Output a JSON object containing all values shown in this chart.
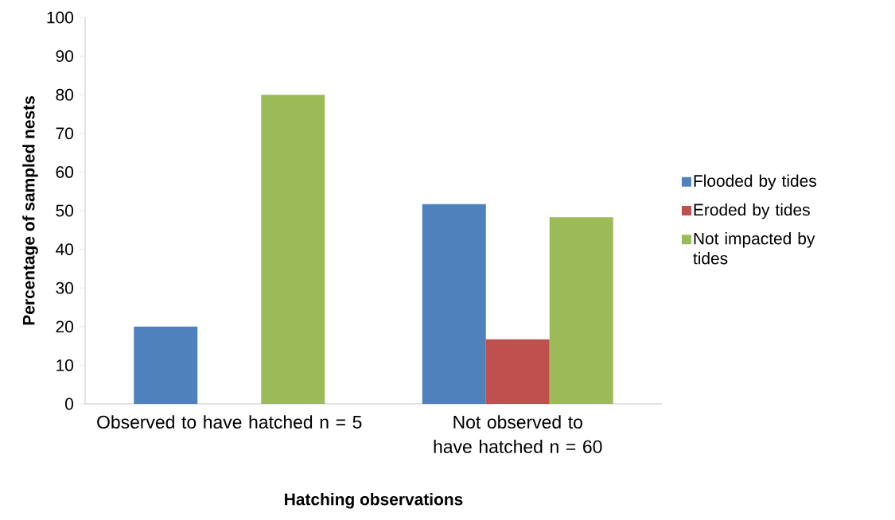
{
  "chart_data": {
    "type": "bar",
    "xlabel": "Hatching observations",
    "ylabel": "Percentage of sampled nests",
    "categories": [
      "Observed to have hatched n = 5",
      "Not observed to have hatched n = 60"
    ],
    "series": [
      {
        "name": "Flooded by tides",
        "color": "#4f81bd",
        "values": [
          20,
          51.7
        ]
      },
      {
        "name": "Eroded by tides",
        "color": "#c0504d",
        "values": [
          0,
          16.7
        ]
      },
      {
        "name": "Not impacted by tides",
        "color": "#9bbb59",
        "values": [
          80,
          48.3
        ]
      }
    ],
    "ylim": [
      0,
      100
    ],
    "yticks": [
      0,
      10,
      20,
      30,
      40,
      50,
      60,
      70,
      80,
      90,
      100
    ],
    "grid": false,
    "legend": "right"
  }
}
